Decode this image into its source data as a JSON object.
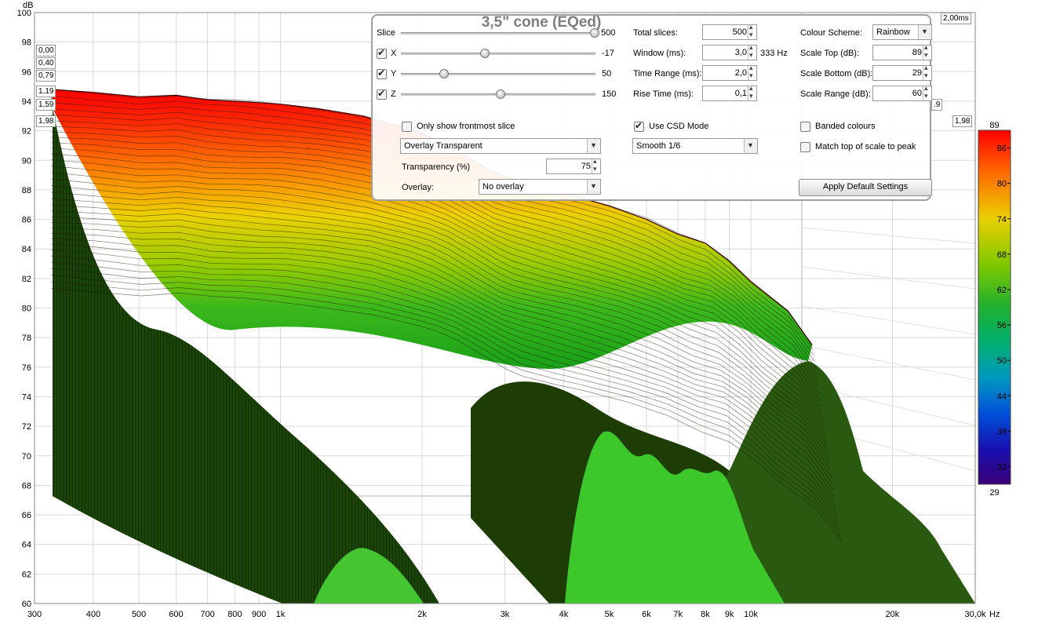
{
  "chart_data": {
    "type": "waterfall",
    "title": "3,5\" cone (EQed)",
    "ylabel": "dB",
    "xunit": "Hz",
    "ylim": [
      60,
      100
    ],
    "xlim": [
      300,
      30000
    ],
    "y_ticks": [
      "60",
      "62",
      "64",
      "66",
      "68",
      "70",
      "72",
      "74",
      "76",
      "78",
      "80",
      "82",
      "84",
      "86",
      "88",
      "90",
      "92",
      "94",
      "96",
      "98",
      "100"
    ],
    "x_ticks": [
      {
        "v": 300,
        "t": "300"
      },
      {
        "v": 400,
        "t": "400"
      },
      {
        "v": 500,
        "t": "500"
      },
      {
        "v": 600,
        "t": "600"
      },
      {
        "v": 700,
        "t": "700"
      },
      {
        "v": 800,
        "t": "800"
      },
      {
        "v": 900,
        "t": "900"
      },
      {
        "v": 1000,
        "t": "1k"
      },
      {
        "v": 2000,
        "t": "2k"
      },
      {
        "v": 3000,
        "t": "3k"
      },
      {
        "v": 4000,
        "t": "4k"
      },
      {
        "v": 5000,
        "t": "5k"
      },
      {
        "v": 6000,
        "t": "6k"
      },
      {
        "v": 7000,
        "t": "7k"
      },
      {
        "v": 8000,
        "t": "8k"
      },
      {
        "v": 9000,
        "t": "9k"
      },
      {
        "v": 10000,
        "t": "10k"
      },
      {
        "v": 20000,
        "t": "20k"
      },
      {
        "v": 30000,
        "t": "30,0k"
      }
    ],
    "time_ticks": [
      "0,00",
      "0,40",
      "0,79",
      "1,19",
      "1,59",
      "1,98"
    ],
    "time_ticks_right": [
      ".9",
      "1,98"
    ],
    "time_end": "2,00ms",
    "front_slice": {
      "freq": [
        325,
        400,
        500,
        600,
        700,
        800,
        900,
        1000,
        1200,
        1500,
        1800,
        2000,
        2200,
        2500,
        2800,
        3000,
        3500,
        4000,
        5000,
        6000,
        7000,
        8000,
        9000,
        10000,
        12000,
        13500
      ],
      "db": [
        94.8,
        94.6,
        94.3,
        94.4,
        94.1,
        94.0,
        93.9,
        93.8,
        93.5,
        93.0,
        92.3,
        91.8,
        91.2,
        90.2,
        89.3,
        88.9,
        88.3,
        87.8,
        86.9,
        86.0,
        85.0,
        84.4,
        83.2,
        81.8,
        79.8,
        77.5
      ]
    },
    "colour_scale": {
      "top": "89",
      "bottom": "29",
      "ticks": [
        "86",
        "80",
        "74",
        "68",
        "62",
        "56",
        "50",
        "44",
        "38",
        "32"
      ],
      "stops": [
        "#ff0000",
        "#ff7000",
        "#e8d000",
        "#a0d000",
        "#20b020",
        "#00b070",
        "#0090c0",
        "#0040d0",
        "#2000a0",
        "#3a0080"
      ]
    }
  },
  "controls": {
    "slice": {
      "label": "Slice",
      "value": "500",
      "pos": 1.0
    },
    "x": {
      "label": "X",
      "value": "-17",
      "checked": true,
      "pos": 0.43
    },
    "y": {
      "label": "Y",
      "value": "50",
      "checked": true,
      "pos": 0.22
    },
    "z": {
      "label": "Z",
      "value": "150",
      "checked": true,
      "pos": 0.51
    },
    "total_slices": {
      "label": "Total slices:",
      "value": "500"
    },
    "window": {
      "label": "Window (ms):",
      "value": "3,0",
      "hz": "333 Hz"
    },
    "time_range": {
      "label": "Time Range (ms):",
      "value": "2,0"
    },
    "rise_time": {
      "label": "Rise Time (ms):",
      "value": "0,1"
    },
    "colour_scheme": {
      "label": "Colour Scheme:",
      "value": "Rainbow"
    },
    "scale_top": {
      "label": "Scale Top (dB):",
      "value": "89"
    },
    "scale_bottom": {
      "label": "Scale Bottom (dB):",
      "value": "29"
    },
    "scale_range": {
      "label": "Scale Range (dB):",
      "value": "60"
    },
    "frontmost": {
      "label": "Only show frontmost slice",
      "checked": false
    },
    "csd_mode": {
      "label": "Use CSD Mode",
      "checked": true
    },
    "banded": {
      "label": "Banded colours",
      "checked": false
    },
    "match_top": {
      "label": "Match top of scale to peak",
      "checked": false
    },
    "overlay_mode": {
      "value": "Overlay Transparent"
    },
    "smoothing": {
      "value": "Smooth 1/6"
    },
    "transparency": {
      "label": "Transparency (%)",
      "value": "75"
    },
    "overlay": {
      "label": "Overlay:",
      "value": "No overlay"
    },
    "apply_button": "Apply Default Settings"
  }
}
